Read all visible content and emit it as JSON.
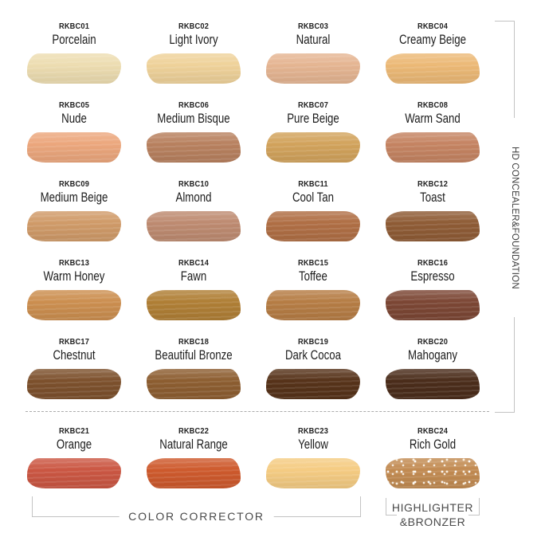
{
  "sections": {
    "side_label": "HD CONCEALER&FOUNDATION",
    "bottom_left_label": "COLOR CORRECTOR",
    "bottom_right_label_line1": "HIGHLIGHTER",
    "bottom_right_label_line2": "&BRONZER"
  },
  "colors": {
    "bracket_line": "#c3c3c3",
    "divider": "#ababab",
    "group_label_text": "#4a4a4a",
    "shade_text": "#1c1c1c",
    "background": "#ffffff"
  },
  "swatches": [
    {
      "code": "RKBC01",
      "name": "Porcelain",
      "color": "#EDDDB1"
    },
    {
      "code": "RKBC02",
      "name": "Light Ivory",
      "color": "#EFD29A"
    },
    {
      "code": "RKBC03",
      "name": "Natural",
      "color": "#E5B592"
    },
    {
      "code": "RKBC04",
      "name": "Creamy Beige",
      "color": "#ECB976"
    },
    {
      "code": "RKBC05",
      "name": "Nude",
      "color": "#ECA77D"
    },
    {
      "code": "RKBC06",
      "name": "Medium Bisque",
      "color": "#B8815F"
    },
    {
      "code": "RKBC07",
      "name": "Pure Beige",
      "color": "#D2A35C"
    },
    {
      "code": "RKBC08",
      "name": "Warm Sand",
      "color": "#C58462"
    },
    {
      "code": "RKBC09",
      "name": "Medium Beige",
      "color": "#D09B69"
    },
    {
      "code": "RKBC10",
      "name": "Almond",
      "color": "#BE8B71"
    },
    {
      "code": "RKBC11",
      "name": "Cool Tan",
      "color": "#B06F45"
    },
    {
      "code": "RKBC12",
      "name": "Toast",
      "color": "#8F5C36"
    },
    {
      "code": "RKBC13",
      "name": "Warm Honey",
      "color": "#CC8F50"
    },
    {
      "code": "RKBC14",
      "name": "Fawn",
      "color": "#B07F36"
    },
    {
      "code": "RKBC15",
      "name": "Toffee",
      "color": "#B67D45"
    },
    {
      "code": "RKBC16",
      "name": "Espresso",
      "color": "#7C4735"
    },
    {
      "code": "RKBC17",
      "name": "Chestnut",
      "color": "#7D512D"
    },
    {
      "code": "RKBC18",
      "name": "Beautiful Bronze",
      "color": "#8D5E31"
    },
    {
      "code": "RKBC19",
      "name": "Dark Cocoa",
      "color": "#57331A"
    },
    {
      "code": "RKBC20",
      "name": "Mahogany",
      "color": "#4B2D1B"
    },
    {
      "code": "RKBC21",
      "name": "Orange",
      "color": "#CB5743"
    },
    {
      "code": "RKBC22",
      "name": "Natural Range",
      "color": "#CE5A2D"
    },
    {
      "code": "RKBC23",
      "name": "Yellow",
      "color": "#F5CC83"
    },
    {
      "code": "RKBC24",
      "name": "Rich Gold",
      "color": "#C28B52"
    }
  ]
}
